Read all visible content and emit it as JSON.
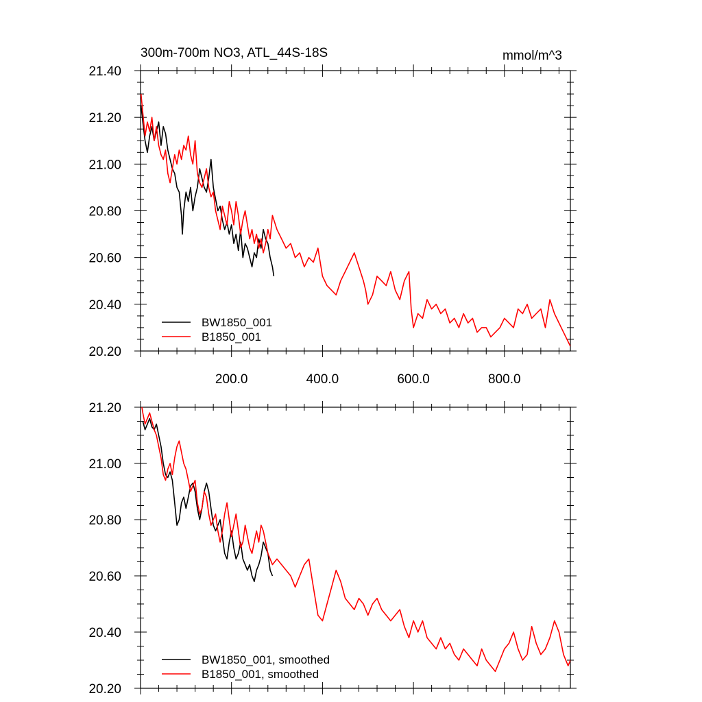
{
  "chart_data": [
    {
      "type": "line",
      "title": "300m-700m NO3, ATL_44S-18S",
      "units": "mmol/m^3",
      "xlim": [
        0,
        945
      ],
      "ylim": [
        20.2,
        21.4
      ],
      "x_ticks": [
        200,
        400,
        600,
        800
      ],
      "x_tick_labels": [
        "200.0",
        "400.0",
        "600.0",
        "800.0"
      ],
      "y_ticks": [
        20.2,
        20.4,
        20.6,
        20.8,
        21.0,
        21.2,
        21.4
      ],
      "y_tick_labels": [
        "20.20",
        "20.40",
        "20.60",
        "20.80",
        "21.00",
        "21.20",
        "21.40"
      ],
      "legend_position": "bottom-left",
      "grid": false,
      "series": [
        {
          "name": "BW1850_001",
          "color": "#000000",
          "x": [
            1,
            5,
            10,
            15,
            20,
            25,
            30,
            35,
            40,
            45,
            50,
            55,
            60,
            65,
            70,
            75,
            80,
            85,
            90,
            92,
            95,
            100,
            105,
            110,
            115,
            120,
            125,
            130,
            135,
            140,
            145,
            150,
            155,
            160,
            165,
            170,
            175,
            180,
            185,
            190,
            195,
            200,
            205,
            210,
            215,
            220,
            225,
            230,
            235,
            240,
            245,
            250,
            255,
            260,
            265,
            270,
            275,
            280,
            285,
            290,
            293
          ],
          "y": [
            21.25,
            21.18,
            21.1,
            21.05,
            21.12,
            21.16,
            21.1,
            21.14,
            21.18,
            21.08,
            21.16,
            21.13,
            21.06,
            21.02,
            20.98,
            20.96,
            20.9,
            20.88,
            20.78,
            20.7,
            20.8,
            20.88,
            20.84,
            20.9,
            20.8,
            20.86,
            20.9,
            20.98,
            20.94,
            20.9,
            20.88,
            20.94,
            21.02,
            20.9,
            20.85,
            20.8,
            20.82,
            20.76,
            20.72,
            20.75,
            20.7,
            20.74,
            20.66,
            20.7,
            20.63,
            20.72,
            20.6,
            20.66,
            20.64,
            20.6,
            20.56,
            20.62,
            20.6,
            20.68,
            20.64,
            20.72,
            20.68,
            20.66,
            20.6,
            20.56,
            20.52
          ]
        },
        {
          "name": "B1850_001",
          "color": "#ff0000",
          "x": [
            1,
            5,
            10,
            15,
            20,
            25,
            30,
            35,
            40,
            45,
            50,
            55,
            60,
            65,
            70,
            75,
            80,
            85,
            90,
            95,
            100,
            105,
            110,
            115,
            120,
            125,
            130,
            135,
            140,
            145,
            150,
            155,
            160,
            165,
            170,
            175,
            180,
            185,
            190,
            195,
            200,
            205,
            210,
            215,
            220,
            225,
            230,
            235,
            240,
            245,
            250,
            255,
            260,
            265,
            270,
            275,
            280,
            285,
            290,
            300,
            310,
            320,
            330,
            340,
            350,
            360,
            370,
            380,
            390,
            400,
            410,
            420,
            430,
            440,
            450,
            460,
            470,
            480,
            490,
            495,
            500,
            510,
            520,
            530,
            540,
            550,
            560,
            570,
            580,
            590,
            595,
            600,
            610,
            620,
            630,
            640,
            650,
            660,
            670,
            680,
            690,
            700,
            710,
            720,
            730,
            740,
            750,
            760,
            770,
            780,
            790,
            800,
            810,
            820,
            830,
            840,
            850,
            860,
            870,
            880,
            890,
            900,
            910,
            920,
            930,
            940,
            945
          ],
          "y": [
            21.3,
            21.22,
            21.12,
            21.18,
            21.14,
            21.2,
            21.1,
            21.16,
            21.08,
            21.04,
            21.02,
            21.06,
            20.96,
            20.92,
            20.98,
            21.04,
            21.0,
            21.06,
            21.02,
            21.08,
            21.06,
            21.12,
            21.04,
            21.0,
            21.1,
            20.96,
            20.92,
            20.9,
            20.94,
            20.98,
            20.9,
            20.86,
            20.88,
            20.8,
            20.76,
            20.72,
            20.82,
            20.78,
            20.74,
            20.84,
            20.8,
            20.74,
            20.84,
            20.78,
            20.7,
            20.76,
            20.8,
            20.74,
            20.68,
            20.72,
            20.66,
            20.7,
            20.64,
            20.68,
            20.62,
            20.66,
            20.72,
            20.68,
            20.78,
            20.72,
            20.68,
            20.64,
            20.66,
            20.6,
            20.62,
            20.56,
            20.6,
            20.58,
            20.64,
            20.52,
            20.48,
            20.46,
            20.44,
            20.5,
            20.54,
            20.58,
            20.62,
            20.56,
            20.5,
            20.46,
            20.4,
            20.44,
            20.52,
            20.5,
            20.48,
            20.54,
            20.46,
            20.42,
            20.5,
            20.54,
            20.38,
            20.3,
            20.36,
            20.34,
            20.42,
            20.38,
            20.4,
            20.36,
            20.38,
            20.32,
            20.34,
            20.3,
            20.36,
            20.32,
            20.34,
            20.28,
            20.3,
            20.3,
            20.26,
            20.28,
            20.3,
            20.34,
            20.32,
            20.3,
            20.38,
            20.36,
            20.4,
            20.34,
            20.36,
            20.38,
            20.3,
            20.42,
            20.36,
            20.32,
            20.28,
            20.24,
            20.22
          ]
        }
      ]
    },
    {
      "type": "line",
      "title": "",
      "xlim": [
        0,
        945
      ],
      "ylim": [
        20.2,
        21.2
      ],
      "y_ticks": [
        20.2,
        20.4,
        20.6,
        20.8,
        21.0,
        21.2
      ],
      "y_tick_labels": [
        "20.20",
        "20.40",
        "20.60",
        "20.80",
        "21.00",
        "21.20"
      ],
      "legend_position": "bottom-left",
      "grid": false,
      "series": [
        {
          "name": "BW1850_001, smoothed",
          "color": "#000000",
          "x": [
            5,
            10,
            15,
            20,
            25,
            30,
            35,
            40,
            45,
            50,
            55,
            60,
            65,
            70,
            75,
            80,
            85,
            90,
            95,
            100,
            105,
            110,
            115,
            120,
            125,
            130,
            135,
            140,
            145,
            150,
            155,
            160,
            165,
            170,
            175,
            180,
            185,
            190,
            195,
            200,
            205,
            210,
            215,
            220,
            225,
            230,
            235,
            240,
            245,
            250,
            255,
            260,
            265,
            270,
            275,
            280,
            285,
            290
          ],
          "y": [
            21.15,
            21.12,
            21.14,
            21.16,
            21.13,
            21.12,
            21.14,
            21.1,
            21.06,
            21.0,
            20.96,
            20.95,
            20.97,
            20.94,
            20.86,
            20.78,
            20.8,
            20.86,
            20.88,
            20.84,
            20.88,
            20.92,
            20.93,
            20.9,
            20.84,
            20.8,
            20.84,
            20.9,
            20.93,
            20.9,
            20.84,
            20.78,
            20.76,
            20.78,
            20.8,
            20.74,
            20.68,
            20.66,
            20.72,
            20.76,
            20.7,
            20.66,
            20.68,
            20.72,
            20.66,
            20.64,
            20.62,
            20.64,
            20.6,
            20.58,
            20.62,
            20.64,
            20.67,
            20.72,
            20.7,
            20.68,
            20.62,
            20.6
          ]
        },
        {
          "name": "B1850_001, smoothed",
          "color": "#ff0000",
          "x": [
            1,
            5,
            10,
            15,
            20,
            25,
            30,
            35,
            40,
            45,
            50,
            55,
            60,
            65,
            70,
            75,
            80,
            85,
            90,
            95,
            100,
            105,
            110,
            115,
            120,
            125,
            130,
            135,
            140,
            145,
            150,
            155,
            160,
            165,
            170,
            175,
            180,
            185,
            190,
            195,
            200,
            205,
            210,
            215,
            220,
            225,
            230,
            235,
            240,
            245,
            250,
            255,
            260,
            265,
            270,
            275,
            280,
            285,
            290,
            300,
            310,
            320,
            330,
            340,
            350,
            360,
            370,
            380,
            390,
            400,
            410,
            420,
            430,
            440,
            450,
            460,
            470,
            480,
            490,
            500,
            510,
            520,
            530,
            540,
            550,
            560,
            570,
            580,
            590,
            600,
            610,
            620,
            630,
            640,
            650,
            660,
            670,
            680,
            690,
            700,
            710,
            720,
            730,
            740,
            750,
            760,
            770,
            780,
            790,
            800,
            810,
            820,
            830,
            840,
            850,
            860,
            870,
            880,
            890,
            900,
            910,
            920,
            930,
            940,
            945
          ],
          "y": [
            21.22,
            21.18,
            21.14,
            21.16,
            21.18,
            21.15,
            21.12,
            21.1,
            21.06,
            21.02,
            20.96,
            20.94,
            20.98,
            21.0,
            20.96,
            21.02,
            21.06,
            21.08,
            21.04,
            21.0,
            20.98,
            20.94,
            20.9,
            20.92,
            20.94,
            20.86,
            20.82,
            20.84,
            20.9,
            20.88,
            20.82,
            20.78,
            20.8,
            20.82,
            20.76,
            20.72,
            20.76,
            20.82,
            20.86,
            20.8,
            20.74,
            20.78,
            20.82,
            20.76,
            20.7,
            20.72,
            20.78,
            20.74,
            20.7,
            20.68,
            20.72,
            20.76,
            20.72,
            20.78,
            20.76,
            20.72,
            20.68,
            20.66,
            20.64,
            20.66,
            20.64,
            20.62,
            20.6,
            20.56,
            20.6,
            20.64,
            20.66,
            20.56,
            20.46,
            20.44,
            20.5,
            20.56,
            20.62,
            20.58,
            20.52,
            20.5,
            20.48,
            20.52,
            20.5,
            20.46,
            20.5,
            20.52,
            20.48,
            20.46,
            20.44,
            20.46,
            20.48,
            20.42,
            20.38,
            20.44,
            20.4,
            20.44,
            20.38,
            20.36,
            20.34,
            20.38,
            20.34,
            20.36,
            20.32,
            20.3,
            20.34,
            20.32,
            20.3,
            20.28,
            20.34,
            20.3,
            20.28,
            20.26,
            20.3,
            20.34,
            20.36,
            20.4,
            20.34,
            20.3,
            20.32,
            20.42,
            20.36,
            20.32,
            20.34,
            20.38,
            20.44,
            20.4,
            20.32,
            20.28,
            20.3
          ]
        }
      ]
    }
  ]
}
